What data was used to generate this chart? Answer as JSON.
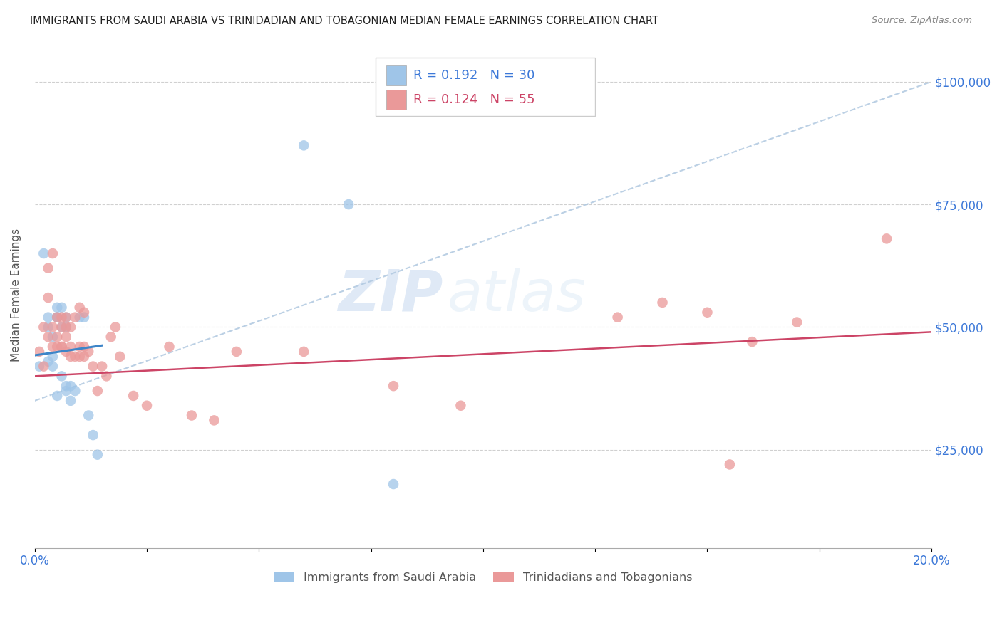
{
  "title": "IMMIGRANTS FROM SAUDI ARABIA VS TRINIDADIAN AND TOBAGONIAN MEDIAN FEMALE EARNINGS CORRELATION CHART",
  "source": "Source: ZipAtlas.com",
  "ylabel": "Median Female Earnings",
  "ytick_labels": [
    "$25,000",
    "$50,000",
    "$75,000",
    "$100,000"
  ],
  "ytick_values": [
    25000,
    50000,
    75000,
    100000
  ],
  "xlim": [
    0.0,
    0.2
  ],
  "ylim": [
    5000,
    108000
  ],
  "legend_r1": "R = 0.192",
  "legend_n1": "N = 30",
  "legend_r2": "R = 0.124",
  "legend_n2": "N = 55",
  "color_blue": "#9fc5e8",
  "color_pink": "#ea9999",
  "color_blue_line": "#3d85c8",
  "color_pink_line": "#cc4466",
  "color_blue_dashed": "#b0c8e0",
  "color_axis_label": "#3c78d8",
  "color_pink_label": "#cc4466",
  "watermark_zip": "ZIP",
  "watermark_atlas": "atlas",
  "legend1_label": "Immigrants from Saudi Arabia",
  "legend2_label": "Trinidadians and Tobagonians",
  "saudi_x": [
    0.001,
    0.002,
    0.003,
    0.003,
    0.003,
    0.004,
    0.004,
    0.004,
    0.005,
    0.005,
    0.005,
    0.005,
    0.006,
    0.006,
    0.006,
    0.007,
    0.007,
    0.007,
    0.007,
    0.008,
    0.008,
    0.009,
    0.01,
    0.011,
    0.012,
    0.013,
    0.014,
    0.06,
    0.07,
    0.08
  ],
  "saudi_y": [
    42000,
    65000,
    43000,
    50000,
    52000,
    44000,
    48000,
    42000,
    52000,
    52000,
    36000,
    54000,
    40000,
    50000,
    54000,
    37000,
    38000,
    52000,
    50000,
    38000,
    35000,
    37000,
    52000,
    52000,
    32000,
    28000,
    24000,
    87000,
    75000,
    18000
  ],
  "tnt_x": [
    0.001,
    0.002,
    0.002,
    0.003,
    0.003,
    0.003,
    0.004,
    0.004,
    0.004,
    0.005,
    0.005,
    0.005,
    0.006,
    0.006,
    0.006,
    0.006,
    0.007,
    0.007,
    0.007,
    0.007,
    0.008,
    0.008,
    0.008,
    0.009,
    0.009,
    0.01,
    0.01,
    0.01,
    0.011,
    0.011,
    0.011,
    0.012,
    0.013,
    0.014,
    0.015,
    0.016,
    0.017,
    0.018,
    0.019,
    0.022,
    0.025,
    0.03,
    0.035,
    0.04,
    0.045,
    0.06,
    0.08,
    0.095,
    0.13,
    0.14,
    0.15,
    0.155,
    0.16,
    0.17,
    0.19
  ],
  "tnt_y": [
    45000,
    50000,
    42000,
    62000,
    56000,
    48000,
    46000,
    50000,
    65000,
    48000,
    52000,
    46000,
    50000,
    46000,
    46000,
    52000,
    45000,
    50000,
    48000,
    52000,
    50000,
    46000,
    44000,
    52000,
    44000,
    46000,
    54000,
    44000,
    44000,
    53000,
    46000,
    45000,
    42000,
    37000,
    42000,
    40000,
    48000,
    50000,
    44000,
    36000,
    34000,
    46000,
    32000,
    31000,
    45000,
    45000,
    38000,
    34000,
    52000,
    55000,
    53000,
    22000,
    47000,
    51000,
    68000
  ]
}
